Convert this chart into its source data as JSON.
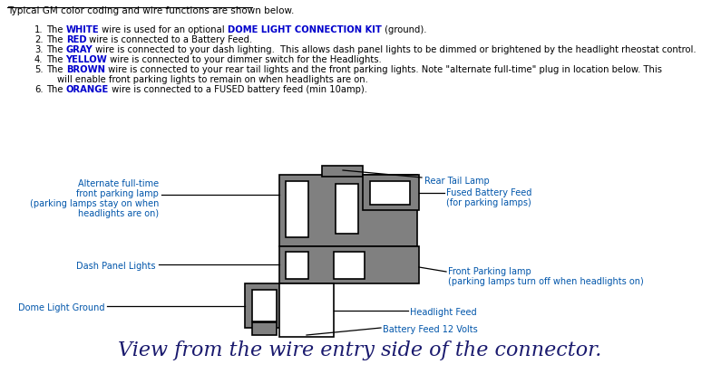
{
  "title_text": "Typical GM color coding and wire functions are shown below.",
  "items": [
    {
      "num": 1,
      "parts": [
        {
          "text": "The ",
          "color": "#000000",
          "bold": false
        },
        {
          "text": "WHITE",
          "color": "#0000cc",
          "bold": true
        },
        {
          "text": " wire is used for an optional ",
          "color": "#000000",
          "bold": false
        },
        {
          "text": "DOME LIGHT CONNECTION KIT",
          "color": "#0000cc",
          "bold": true
        },
        {
          "text": " (ground).",
          "color": "#000000",
          "bold": false
        }
      ]
    },
    {
      "num": 2,
      "parts": [
        {
          "text": "The ",
          "color": "#000000",
          "bold": false
        },
        {
          "text": "RED",
          "color": "#0000cc",
          "bold": true
        },
        {
          "text": " wire is connected to a Battery Feed.",
          "color": "#000000",
          "bold": false
        }
      ]
    },
    {
      "num": 3,
      "parts": [
        {
          "text": "The ",
          "color": "#000000",
          "bold": false
        },
        {
          "text": "GRAY",
          "color": "#0000cc",
          "bold": true
        },
        {
          "text": " wire is connected to your dash lighting.  This allows dash panel lights to be dimmed or brightened by the headlight rheostat control.",
          "color": "#000000",
          "bold": false
        }
      ]
    },
    {
      "num": 4,
      "parts": [
        {
          "text": "The ",
          "color": "#000000",
          "bold": false
        },
        {
          "text": "YELLOW",
          "color": "#0000cc",
          "bold": true
        },
        {
          "text": " wire is connected to your dimmer switch for the Headlights.",
          "color": "#000000",
          "bold": false
        }
      ]
    },
    {
      "num": 5,
      "parts": [
        {
          "text": "The ",
          "color": "#000000",
          "bold": false
        },
        {
          "text": "BROWN",
          "color": "#0000cc",
          "bold": true
        },
        {
          "text": " wire is connected to your rear tail lights and the front parking lights. Note \"alternate full-time\" plug in location below. This",
          "color": "#000000",
          "bold": false
        }
      ]
    },
    {
      "num": -1,
      "parts": [
        {
          "text": "will enable front parking lights to remain on when headlights are on.",
          "color": "#000000",
          "bold": false
        }
      ]
    },
    {
      "num": 6,
      "parts": [
        {
          "text": "The ",
          "color": "#000000",
          "bold": false
        },
        {
          "text": "ORANGE",
          "color": "#0000cc",
          "bold": true
        },
        {
          "text": " wire is connected to a FUSED battery feed (min 10amp).",
          "color": "#000000",
          "bold": false
        }
      ]
    }
  ],
  "footer": "View from the wire entry side of the connector.",
  "connector_color": "#808080",
  "connector_outline": "#000000",
  "label_color": "#0055aa",
  "bg_color": "#ffffff"
}
